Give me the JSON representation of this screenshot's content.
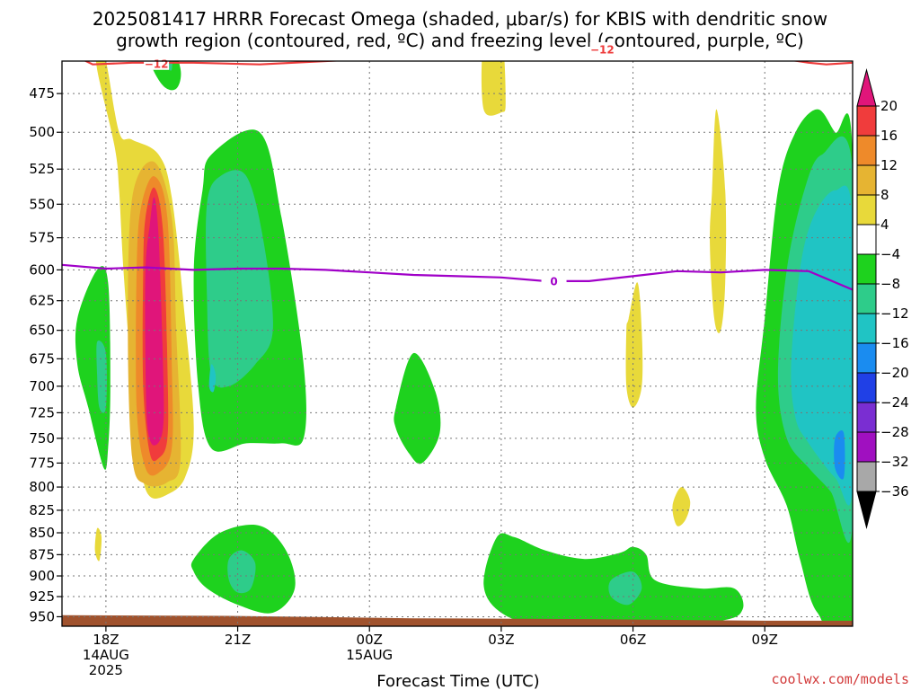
{
  "title": {
    "line1": "2025081417 HRRR Forecast Omega (shaded, μbar/s) for KBIS with dendritic snow",
    "line2": "growth region (contoured, red, ºC) and freezing level (contoured, purple, ºC)"
  },
  "credit": "coolwx.com/models",
  "chart_data": {
    "type": "heatmap",
    "xlabel": "Forecast Time (UTC)",
    "x_ticks": [
      {
        "hour": 1,
        "label": "18Z",
        "sub1": "14AUG",
        "sub2": "2025"
      },
      {
        "hour": 4,
        "label": "21Z",
        "sub1": "",
        "sub2": ""
      },
      {
        "hour": 7,
        "label": "00Z",
        "sub1": "15AUG",
        "sub2": ""
      },
      {
        "hour": 10,
        "label": "03Z",
        "sub1": "",
        "sub2": ""
      },
      {
        "hour": 13,
        "label": "06Z",
        "sub1": "",
        "sub2": ""
      },
      {
        "hour": 16,
        "label": "09Z",
        "sub1": "",
        "sub2": ""
      }
    ],
    "x_range_hours": [
      0,
      18
    ],
    "y_ticks": [
      475,
      500,
      525,
      550,
      575,
      600,
      625,
      650,
      675,
      700,
      725,
      750,
      775,
      800,
      825,
      850,
      875,
      900,
      925,
      950
    ],
    "y_range_hPa": [
      455,
      962
    ],
    "y_scale": "log-pressure",
    "grid": "dotted",
    "colorbar": {
      "levels": [
        -36,
        -32,
        -28,
        -24,
        -20,
        -16,
        -12,
        -8,
        -4,
        4,
        8,
        12,
        16,
        20
      ],
      "labels": [
        "20",
        "16",
        "12",
        "8",
        "4",
        "−4",
        "−8",
        "−12",
        "−16",
        "−20",
        "−24",
        "−28",
        "−32",
        "−36"
      ],
      "colors_top_to_bottom": [
        "#e0157a",
        "#f03c3c",
        "#ee8a2a",
        "#e6b432",
        "#e8d93a",
        "#ffffff",
        "#1ed21e",
        "#2ecc8a",
        "#20c4c4",
        "#1a8cf0",
        "#2040e6",
        "#7a2ed2",
        "#a010c0",
        "#a8a8a8",
        "#000000"
      ]
    },
    "contours": [
      {
        "name": "dendritic snow growth",
        "color": "#ee3b3b",
        "label": "-12",
        "points": [
          [
            0,
            448
          ],
          [
            0.7,
            457
          ],
          [
            1.6,
            456
          ],
          [
            3,
            456
          ],
          [
            4.5,
            457
          ],
          [
            6,
            455
          ],
          [
            7.5,
            453
          ],
          [
            9,
            452
          ],
          [
            10,
            450
          ],
          [
            11,
            449
          ],
          [
            12,
            448
          ],
          [
            13,
            449
          ],
          [
            14,
            451
          ],
          [
            15,
            453
          ],
          [
            16,
            452
          ],
          [
            17,
            456
          ],
          [
            17.4,
            457
          ],
          [
            18,
            456
          ]
        ],
        "label_at": [
          [
            2.15,
            456.5
          ],
          [
            12.3,
            448
          ]
        ]
      },
      {
        "name": "freezing level",
        "color": "#a000c8",
        "label": "0",
        "points": [
          [
            0,
            596
          ],
          [
            1,
            599
          ],
          [
            1.9,
            598
          ],
          [
            3,
            600
          ],
          [
            4,
            599
          ],
          [
            5,
            599
          ],
          [
            6,
            600
          ],
          [
            7,
            602
          ],
          [
            8,
            604
          ],
          [
            9,
            605
          ],
          [
            10,
            606
          ],
          [
            11,
            609
          ],
          [
            12,
            609
          ],
          [
            13,
            605
          ],
          [
            14,
            601
          ],
          [
            15,
            602
          ],
          [
            16,
            600
          ],
          [
            17,
            601
          ],
          [
            18,
            616
          ]
        ],
        "label_at": [
          [
            11.2,
            609
          ]
        ]
      }
    ],
    "shaded_regions": [
      {
        "level": "4 to 8",
        "color": "#e8d93a",
        "points": [
          [
            0.8,
            460
          ],
          [
            1.2,
            510
          ],
          [
            1.3,
            540
          ],
          [
            1.4,
            600
          ],
          [
            1.6,
            700
          ],
          [
            1.8,
            780
          ],
          [
            2,
            810
          ],
          [
            2.4,
            808
          ],
          [
            2.8,
            790
          ],
          [
            3,
            740
          ],
          [
            2.8,
            640
          ],
          [
            2.5,
            545
          ],
          [
            2.2,
            515
          ],
          [
            1.6,
            505
          ],
          [
            1.3,
            500
          ],
          [
            1.0,
            455
          ],
          [
            0.8,
            445
          ]
        ]
      },
      {
        "level": "8 to 12",
        "color": "#e6b432",
        "points": [
          [
            1.6,
            545
          ],
          [
            2.1,
            520
          ],
          [
            2.5,
            560
          ],
          [
            2.6,
            650
          ],
          [
            2.7,
            770
          ],
          [
            2.4,
            795
          ],
          [
            1.9,
            797
          ],
          [
            1.6,
            770
          ],
          [
            1.5,
            650
          ]
        ]
      },
      {
        "level": "12 to 16",
        "color": "#ee8a2a",
        "points": [
          [
            1.8,
            552
          ],
          [
            2.1,
            530
          ],
          [
            2.4,
            560
          ],
          [
            2.5,
            680
          ],
          [
            2.5,
            760
          ],
          [
            2.2,
            785
          ],
          [
            1.9,
            780
          ],
          [
            1.7,
            720
          ],
          [
            1.7,
            600
          ]
        ]
      },
      {
        "level": "16 to 20",
        "color": "#f03c3c",
        "points": [
          [
            1.9,
            560
          ],
          [
            2.1,
            538
          ],
          [
            2.3,
            570
          ],
          [
            2.4,
            680
          ],
          [
            2.4,
            750
          ],
          [
            2.2,
            770
          ],
          [
            2.0,
            765
          ],
          [
            1.85,
            700
          ],
          [
            1.85,
            600
          ]
        ]
      },
      {
        "level": "above 20",
        "color": "#e0157a",
        "points": [
          [
            2.0,
            565
          ],
          [
            2.1,
            545
          ],
          [
            2.2,
            575
          ],
          [
            2.3,
            680
          ],
          [
            2.3,
            740
          ],
          [
            2.1,
            757
          ],
          [
            1.95,
            740
          ],
          [
            1.9,
            680
          ],
          [
            1.9,
            600
          ]
        ]
      },
      {
        "level": "-4 to -8",
        "color": "#1ed21e",
        "points": [
          [
            0.35,
            640
          ],
          [
            0.8,
            600
          ],
          [
            1.05,
            610
          ],
          [
            1.1,
            700
          ],
          [
            1.05,
            760
          ],
          [
            0.95,
            780
          ],
          [
            0.6,
            720
          ],
          [
            0.35,
            680
          ]
        ]
      },
      {
        "level": "-8 to -12",
        "color": "#2ecc8a",
        "points": [
          [
            0.8,
            660
          ],
          [
            1.0,
            670
          ],
          [
            1.0,
            720
          ],
          [
            0.85,
            720
          ],
          [
            0.8,
            690
          ]
        ]
      },
      {
        "level": "4 to 8",
        "color": "#e8d93a",
        "points": [
          [
            0.8,
            845
          ],
          [
            0.9,
            855
          ],
          [
            0.85,
            882
          ],
          [
            0.75,
            870
          ]
        ]
      },
      {
        "level": "-4 to -8",
        "color": "#1ed21e",
        "points": [
          [
            2.0,
            440
          ],
          [
            2.4,
            440
          ],
          [
            2.7,
            460
          ],
          [
            2.6,
            472
          ],
          [
            2.3,
            470
          ],
          [
            2.0,
            455
          ]
        ]
      },
      {
        "level": "-8 to -12",
        "color": "#2ecc8a",
        "points": [
          [
            2.3,
            440
          ],
          [
            2.5,
            440
          ],
          [
            2.5,
            460
          ],
          [
            2.35,
            455
          ]
        ]
      },
      {
        "level": "-4 to -8",
        "color": "#1ed21e",
        "points": [
          [
            3.2,
            540
          ],
          [
            3.4,
            515
          ],
          [
            4.5,
            500
          ],
          [
            5.0,
            560
          ],
          [
            5.5,
            680
          ],
          [
            5.5,
            750
          ],
          [
            5.0,
            755
          ],
          [
            4.2,
            755
          ],
          [
            3.4,
            760
          ],
          [
            3.1,
            700
          ],
          [
            3.0,
            600
          ]
        ]
      },
      {
        "level": "-8 to -12",
        "color": "#2ecc8a",
        "points": [
          [
            3.3,
            550
          ],
          [
            3.6,
            530
          ],
          [
            4.2,
            530
          ],
          [
            4.6,
            580
          ],
          [
            4.8,
            650
          ],
          [
            4.4,
            680
          ],
          [
            3.8,
            700
          ],
          [
            3.4,
            690
          ],
          [
            3.3,
            620
          ]
        ]
      },
      {
        "level": "-12 to -16",
        "color": "#20c4c4",
        "points": [
          [
            3.4,
            680
          ],
          [
            3.5,
            690
          ],
          [
            3.45,
            705
          ],
          [
            3.35,
            700
          ]
        ]
      },
      {
        "level": "-4 to -8",
        "color": "#1ed21e",
        "points": [
          [
            3.0,
            880
          ],
          [
            3.6,
            850
          ],
          [
            4.5,
            842
          ],
          [
            5.1,
            870
          ],
          [
            5.3,
            915
          ],
          [
            4.8,
            945
          ],
          [
            4.0,
            935
          ],
          [
            3.3,
            915
          ],
          [
            3.0,
            895
          ]
        ]
      },
      {
        "level": "-8 to -12",
        "color": "#2ecc8a",
        "points": [
          [
            3.8,
            880
          ],
          [
            4.1,
            870
          ],
          [
            4.4,
            885
          ],
          [
            4.3,
            915
          ],
          [
            4.0,
            920
          ],
          [
            3.8,
            905
          ]
        ]
      },
      {
        "level": "-4 to -8",
        "color": "#1ed21e",
        "points": [
          [
            7.6,
            720
          ],
          [
            8.0,
            670
          ],
          [
            8.5,
            705
          ],
          [
            8.6,
            745
          ],
          [
            8.2,
            775
          ],
          [
            7.9,
            765
          ],
          [
            7.6,
            740
          ]
        ]
      },
      {
        "level": "4 to 8",
        "color": "#e8d93a",
        "points": [
          [
            9.6,
            445
          ],
          [
            10.0,
            440
          ],
          [
            10.1,
            480
          ],
          [
            10.0,
            487
          ],
          [
            9.6,
            485
          ]
        ]
      },
      {
        "level": "-4 to -8",
        "color": "#1ed21e",
        "points": [
          [
            9.6,
            910
          ],
          [
            9.9,
            855
          ],
          [
            10.3,
            855
          ],
          [
            11.0,
            870
          ],
          [
            11.9,
            880
          ],
          [
            12.7,
            873
          ],
          [
            13.0,
            866
          ],
          [
            13.3,
            875
          ],
          [
            13.5,
            905
          ],
          [
            14.5,
            915
          ],
          [
            15.3,
            915
          ],
          [
            15.5,
            940
          ],
          [
            15.0,
            955
          ],
          [
            13.0,
            962
          ],
          [
            11,
            962
          ],
          [
            10,
            945
          ]
        ]
      },
      {
        "level": "-8 to -12",
        "color": "#2ecc8a",
        "points": [
          [
            12.5,
            905
          ],
          [
            13.0,
            895
          ],
          [
            13.2,
            915
          ],
          [
            12.9,
            935
          ],
          [
            12.5,
            925
          ]
        ]
      },
      {
        "level": "4 to 8",
        "color": "#e8d93a",
        "points": [
          [
            12.9,
            640
          ],
          [
            13.1,
            610
          ],
          [
            13.2,
            650
          ],
          [
            13.2,
            700
          ],
          [
            13.0,
            720
          ],
          [
            12.85,
            700
          ],
          [
            12.85,
            650
          ]
        ]
      },
      {
        "level": "4 to 8",
        "color": "#e8d93a",
        "points": [
          [
            14.8,
            540
          ],
          [
            14.9,
            485
          ],
          [
            15.1,
            540
          ],
          [
            15.1,
            610
          ],
          [
            15.0,
            650
          ],
          [
            14.85,
            640
          ],
          [
            14.75,
            580
          ]
        ]
      },
      {
        "level": "4 to 8",
        "color": "#e8d93a",
        "points": [
          [
            13.9,
            820
          ],
          [
            14.1,
            800
          ],
          [
            14.3,
            815
          ],
          [
            14.2,
            835
          ],
          [
            14.0,
            842
          ]
        ]
      },
      {
        "level": "-4 to -8",
        "color": "#1ed21e",
        "points": [
          [
            16.0,
            640
          ],
          [
            16.3,
            540
          ],
          [
            16.7,
            500
          ],
          [
            17.2,
            485
          ],
          [
            17.6,
            500
          ],
          [
            18.0,
            515
          ],
          [
            18.0,
            962
          ],
          [
            17.2,
            945
          ],
          [
            16.8,
            880
          ],
          [
            16.5,
            820
          ],
          [
            16.0,
            770
          ],
          [
            15.8,
            720
          ]
        ]
      },
      {
        "level": "-8 to -12",
        "color": "#2ecc8a",
        "points": [
          [
            16.3,
            690
          ],
          [
            16.5,
            600
          ],
          [
            16.9,
            540
          ],
          [
            17.3,
            515
          ],
          [
            18.0,
            525
          ],
          [
            18.0,
            840
          ],
          [
            17.5,
            805
          ],
          [
            17.0,
            780
          ],
          [
            16.5,
            750
          ]
        ]
      },
      {
        "level": "-12 to -16",
        "color": "#20c4c4",
        "points": [
          [
            16.6,
            680
          ],
          [
            16.8,
            600
          ],
          [
            17.1,
            560
          ],
          [
            17.6,
            540
          ],
          [
            18.0,
            560
          ],
          [
            18.0,
            800
          ],
          [
            17.6,
            790
          ],
          [
            17.0,
            755
          ],
          [
            16.7,
            730
          ]
        ]
      },
      {
        "level": "-16 to -20",
        "color": "#1a8cf0",
        "points": [
          [
            17.6,
            750
          ],
          [
            17.8,
            745
          ],
          [
            17.8,
            790
          ],
          [
            17.6,
            780
          ]
        ]
      }
    ],
    "terrain": {
      "color": "#a0522d",
      "points": [
        [
          0,
          948
        ],
        [
          4,
          949
        ],
        [
          8,
          952
        ],
        [
          12,
          953
        ],
        [
          16,
          955
        ],
        [
          18,
          955
        ]
      ]
    }
  }
}
